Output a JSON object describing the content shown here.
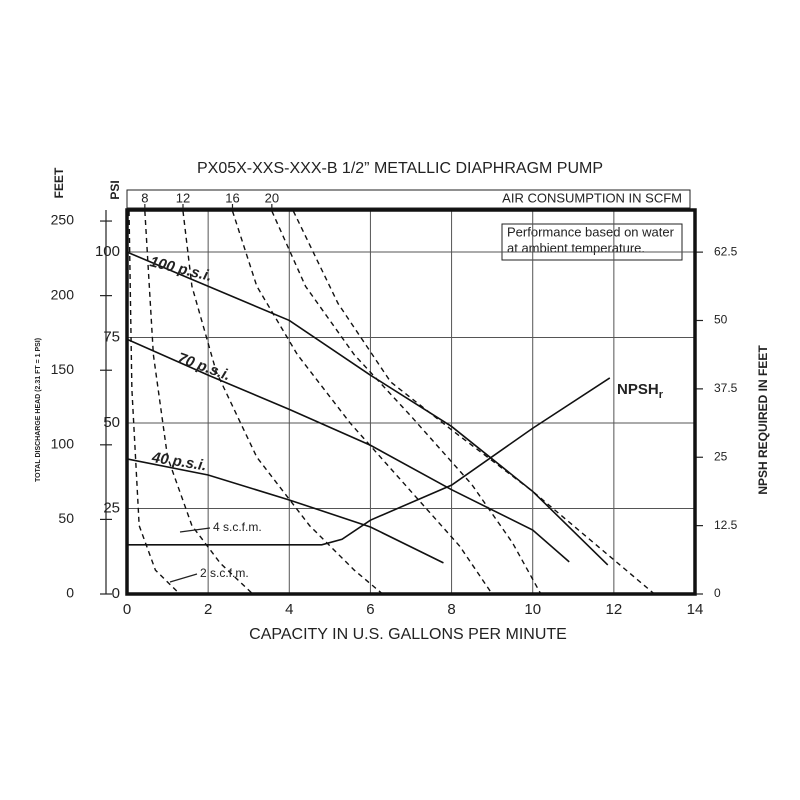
{
  "chart_data": {
    "type": "line",
    "title": "PX05X-XXS-XXX-B  1/2” METALLIC DIAPHRAGM PUMP",
    "x_label": "CAPACITY IN U.S. GALLONS PER MINUTE",
    "xlim": [
      0,
      14
    ],
    "xticks": [
      0,
      2,
      4,
      6,
      8,
      10,
      12,
      14
    ],
    "y_label": "PSI",
    "ylim": [
      0,
      112.3
    ],
    "yticks": [
      0,
      25,
      50,
      75,
      100
    ],
    "y2_label": "NPSH REQUIRED IN FEET",
    "y2lim": [
      0,
      70.2
    ],
    "y2ticks": [
      0,
      12.5,
      25,
      37.5,
      50,
      62.5
    ],
    "feet_label": "FEET",
    "feet_sublabel": "TOTAL DISCHARGE HEAD (2.31 FT = 1 PSI)",
    "feetlim": [
      0,
      257.4
    ],
    "feetticks": [
      0,
      50,
      100,
      150,
      200,
      250
    ],
    "top_label": "AIR CONSUMPTION IN SCFM",
    "top_ticks": [
      {
        "value": 0.44,
        "label": "8"
      },
      {
        "value": 1.38,
        "label": "12"
      },
      {
        "value": 2.6,
        "label": "16"
      },
      {
        "value": 3.57,
        "label": "20"
      }
    ],
    "note": [
      "Performance based on water",
      "at ambient temperature."
    ],
    "grid": true,
    "series": [
      {
        "name": "100 p.s.i.",
        "color": "#111",
        "x": [
          0,
          2,
          4,
          6,
          8,
          10,
          11.85
        ],
        "values": [
          100,
          90,
          80,
          64,
          49,
          30,
          8.5
        ]
      },
      {
        "name": "70 p.s.i.",
        "color": "#111",
        "x": [
          0,
          2,
          4,
          6,
          8,
          10,
          10.9
        ],
        "values": [
          74.5,
          64,
          54,
          43.5,
          30.5,
          18.7,
          9.4
        ]
      },
      {
        "name": "40 p.s.i.",
        "color": "#111",
        "x": [
          0,
          2,
          4,
          6,
          7.8
        ],
        "values": [
          39.5,
          34.8,
          27.5,
          19.6,
          9.1
        ]
      },
      {
        "name": "NPSH",
        "name_subscript": "r",
        "axis": "y2",
        "color": "#111",
        "x": [
          0,
          4.8,
          5.3,
          6,
          8,
          10,
          11.9
        ],
        "values": [
          9,
          9,
          10,
          13.5,
          19.9,
          30.3,
          39.5
        ]
      }
    ],
    "dashed": [
      {
        "x": [
          0.05,
          0.12,
          0.3,
          0.7,
          1.3
        ],
        "values": [
          112,
          60,
          20,
          7,
          0
        ]
      },
      {
        "x": [
          0.44,
          0.65,
          1,
          1.6,
          2.3,
          3.1
        ],
        "values": [
          112,
          70,
          40,
          20,
          9,
          0
        ]
      },
      {
        "x": [
          1.38,
          1.6,
          2.2,
          3.2,
          4.5,
          5.6,
          6.3
        ],
        "values": [
          112,
          90,
          65,
          40,
          20,
          7,
          0
        ]
      },
      {
        "x": [
          2.6,
          3.2,
          4.2,
          5.5,
          7,
          8.2,
          9
        ],
        "values": [
          112,
          90,
          70,
          50,
          30,
          14,
          0
        ]
      },
      {
        "x": [
          3.57,
          4.4,
          5.6,
          7,
          8.5,
          9.5,
          10.2
        ],
        "values": [
          112,
          90,
          70,
          52,
          32,
          15,
          0
        ]
      },
      {
        "x": [
          4.1,
          5.2,
          6.5,
          8,
          10,
          12,
          13
        ],
        "values": [
          112,
          85,
          62,
          48,
          30,
          10,
          0
        ]
      }
    ],
    "annotations": [
      "4 s.c.f.m.",
      "2 s.c.f.m."
    ]
  }
}
